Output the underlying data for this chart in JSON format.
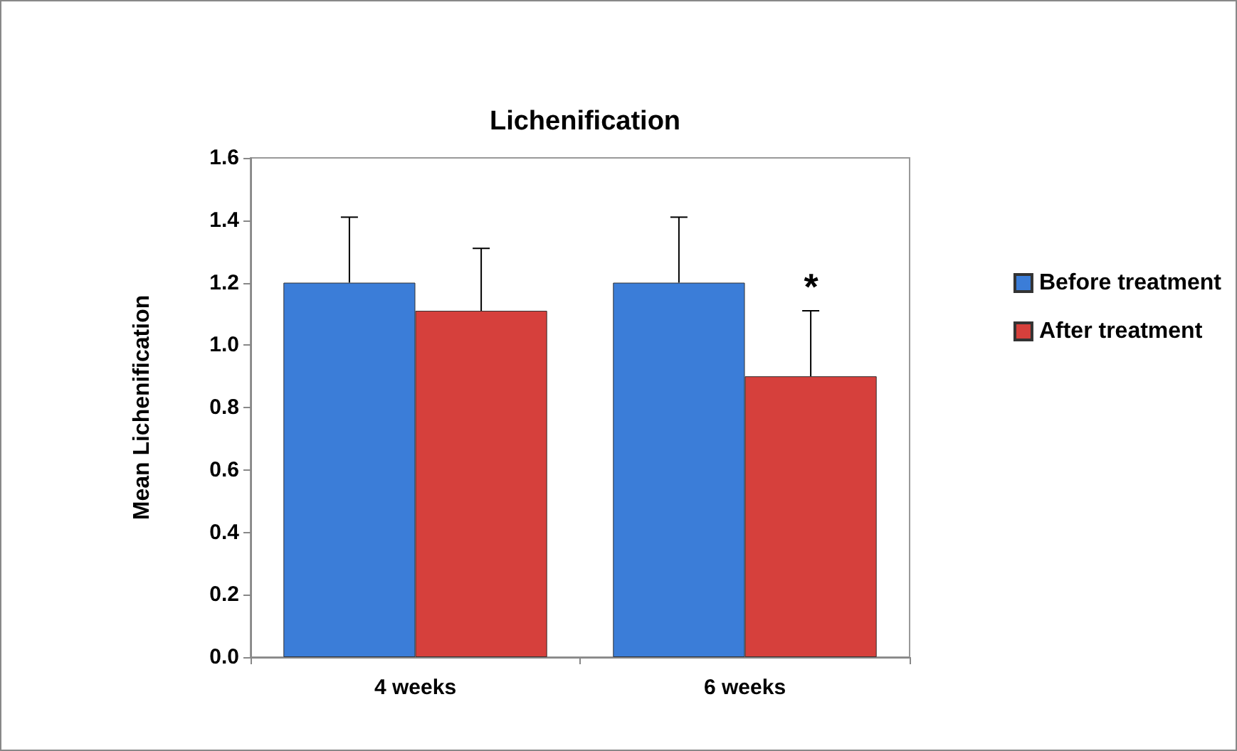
{
  "chart_data": {
    "type": "bar",
    "title": "Lichenification",
    "ylabel": "Mean Lichenification",
    "categories": [
      "4 weeks",
      "6 weeks"
    ],
    "series": [
      {
        "name": "Before treatment",
        "color": "#3b7dd8",
        "values": [
          1.2,
          1.2
        ],
        "errors": [
          [
            1.2,
            1.41
          ],
          [
            1.2,
            1.41
          ]
        ]
      },
      {
        "name": "After treatment",
        "color": "#d6403c",
        "values": [
          1.11,
          0.9
        ],
        "errors": [
          [
            1.11,
            1.31
          ],
          [
            0.9,
            1.11
          ]
        ]
      }
    ],
    "ylim": [
      0,
      1.6
    ],
    "yticks": [
      {
        "value": 0,
        "label": "0.0"
      },
      {
        "value": 0.2,
        "label": "0.2"
      },
      {
        "value": 0.4,
        "label": "0.4"
      },
      {
        "value": 0.6,
        "label": "0.6"
      },
      {
        "value": 0.8,
        "label": "0.8"
      },
      {
        "value": 1,
        "label": "1.0"
      },
      {
        "value": 1.2,
        "label": "1.2"
      },
      {
        "value": 1.4,
        "label": "1.4"
      },
      {
        "value": 1.6,
        "label": "1.6"
      }
    ],
    "annotations": [
      {
        "text": "*",
        "x": "6 weeks",
        "y": 1.11
      }
    ],
    "grid": false,
    "legend": "right"
  }
}
